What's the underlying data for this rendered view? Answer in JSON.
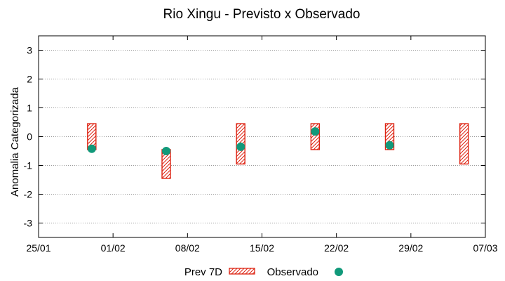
{
  "chart_data": {
    "type": "range-bar-with-points",
    "title": "Rio Xingu - Previsto x Observado",
    "xlabel": "",
    "ylabel": "Anomalia Categorizada",
    "xlim": [
      0,
      42
    ],
    "ylim": [
      -3.5,
      3.5
    ],
    "x_ticks": [
      {
        "x": 0,
        "label": "25/01"
      },
      {
        "x": 7,
        "label": "01/02"
      },
      {
        "x": 14,
        "label": "08/02"
      },
      {
        "x": 21,
        "label": "15/02"
      },
      {
        "x": 28,
        "label": "22/02"
      },
      {
        "x": 35,
        "label": "29/02"
      },
      {
        "x": 42,
        "label": "07/03"
      }
    ],
    "y_ticks": [
      {
        "y": 3,
        "label": "3"
      },
      {
        "y": 2,
        "label": "2"
      },
      {
        "y": 1,
        "label": "1"
      },
      {
        "y": 0,
        "label": "0"
      },
      {
        "y": -1,
        "label": "-1"
      },
      {
        "y": -2,
        "label": "-2"
      },
      {
        "y": -3,
        "label": "-3"
      }
    ],
    "grid": "horizontal-dotted",
    "legend_position": "bottom",
    "series": [
      {
        "name": "Prev 7D",
        "kind": "range",
        "color": "#dd2211",
        "points": [
          {
            "x": 5,
            "low": -0.45,
            "high": 0.45
          },
          {
            "x": 12,
            "low": -1.45,
            "high": -0.45
          },
          {
            "x": 19,
            "low": -0.95,
            "high": 0.45
          },
          {
            "x": 26,
            "low": -0.45,
            "high": 0.45
          },
          {
            "x": 33,
            "low": -0.45,
            "high": 0.45
          },
          {
            "x": 40,
            "low": -0.95,
            "high": 0.45
          }
        ]
      },
      {
        "name": "Observado",
        "kind": "point",
        "color": "#11997a",
        "points": [
          {
            "x": 5,
            "y": -0.42
          },
          {
            "x": 12,
            "y": -0.5
          },
          {
            "x": 19,
            "y": -0.35
          },
          {
            "x": 26,
            "y": 0.18
          },
          {
            "x": 33,
            "y": -0.3
          }
        ]
      }
    ]
  }
}
